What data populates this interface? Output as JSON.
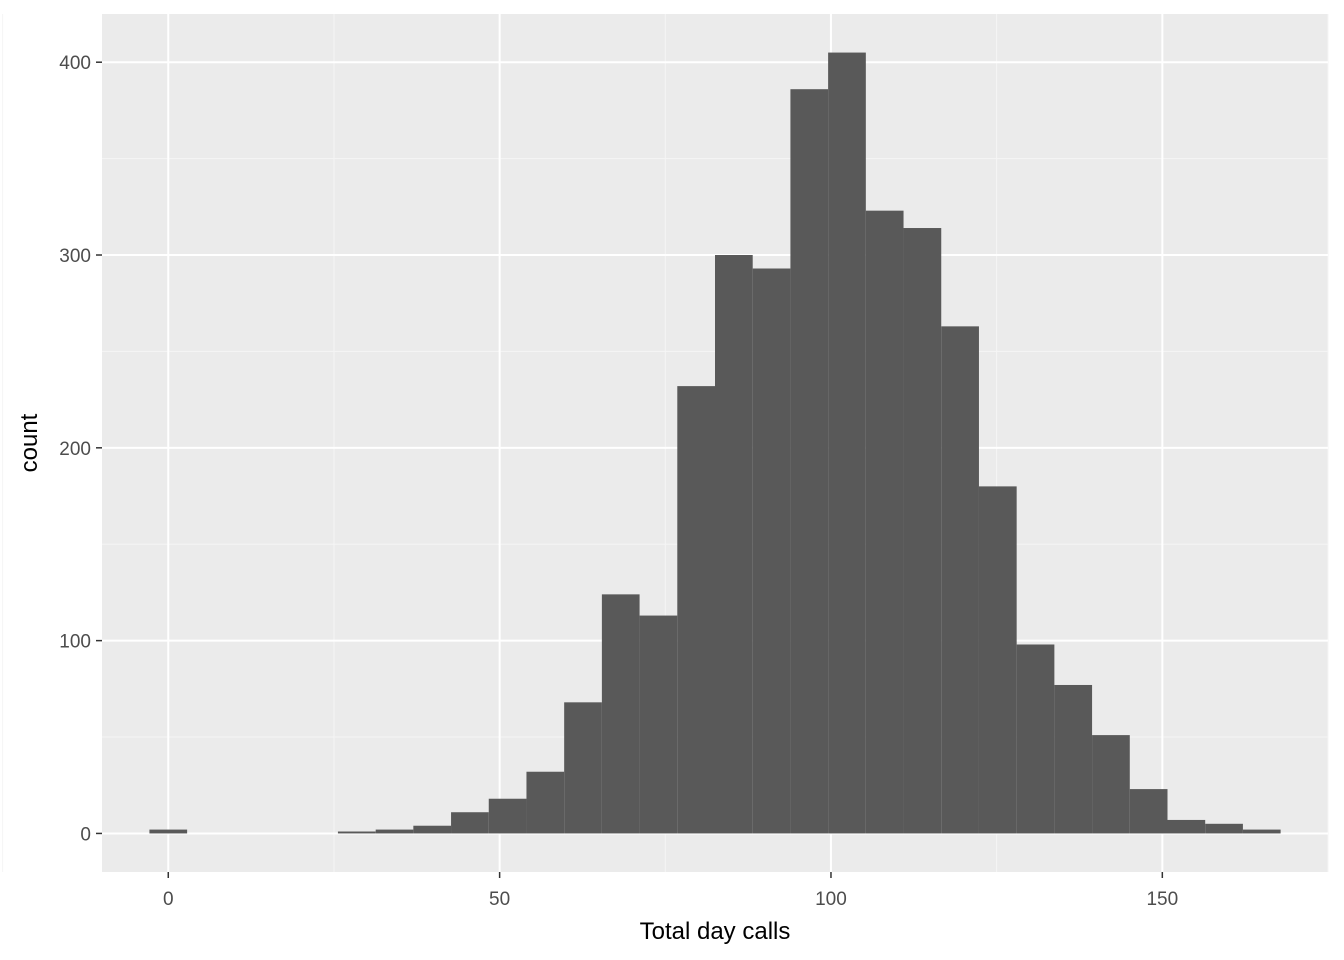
{
  "chart_data": {
    "type": "bar",
    "subtype": "histogram",
    "title": "",
    "xlabel": "Total day calls",
    "ylabel": "count",
    "xlim": [
      -10,
      175
    ],
    "ylim": [
      -20,
      425
    ],
    "x_ticks": [
      0,
      50,
      100,
      150
    ],
    "y_ticks": [
      0,
      100,
      200,
      300,
      400
    ],
    "grid": true,
    "bin_width": 5.69,
    "bins": [
      {
        "x_start": -2.845,
        "x_end": 2.845,
        "count": 2
      },
      {
        "x_start": 25.6,
        "x_end": 31.3,
        "count": 1
      },
      {
        "x_start": 31.3,
        "x_end": 36.98,
        "count": 2
      },
      {
        "x_start": 36.98,
        "x_end": 42.67,
        "count": 4
      },
      {
        "x_start": 42.67,
        "x_end": 48.36,
        "count": 11
      },
      {
        "x_start": 48.36,
        "x_end": 54.05,
        "count": 18
      },
      {
        "x_start": 54.05,
        "x_end": 59.74,
        "count": 32
      },
      {
        "x_start": 59.74,
        "x_end": 65.43,
        "count": 68
      },
      {
        "x_start": 65.43,
        "x_end": 71.12,
        "count": 124
      },
      {
        "x_start": 71.12,
        "x_end": 76.81,
        "count": 113
      },
      {
        "x_start": 76.81,
        "x_end": 82.5,
        "count": 232
      },
      {
        "x_start": 82.5,
        "x_end": 88.19,
        "count": 300
      },
      {
        "x_start": 88.19,
        "x_end": 93.88,
        "count": 293
      },
      {
        "x_start": 93.88,
        "x_end": 99.57,
        "count": 386
      },
      {
        "x_start": 99.57,
        "x_end": 105.26,
        "count": 405
      },
      {
        "x_start": 105.26,
        "x_end": 110.95,
        "count": 323
      },
      {
        "x_start": 110.95,
        "x_end": 116.64,
        "count": 314
      },
      {
        "x_start": 116.64,
        "x_end": 122.33,
        "count": 263
      },
      {
        "x_start": 122.33,
        "x_end": 128.02,
        "count": 180
      },
      {
        "x_start": 128.02,
        "x_end": 133.71,
        "count": 98
      },
      {
        "x_start": 133.71,
        "x_end": 139.4,
        "count": 77
      },
      {
        "x_start": 139.4,
        "x_end": 145.09,
        "count": 51
      },
      {
        "x_start": 145.09,
        "x_end": 150.78,
        "count": 23
      },
      {
        "x_start": 150.78,
        "x_end": 156.47,
        "count": 7
      },
      {
        "x_start": 156.47,
        "x_end": 162.16,
        "count": 5
      },
      {
        "x_start": 162.16,
        "x_end": 167.85,
        "count": 2
      }
    ],
    "colors": {
      "bar_fill": "#595959",
      "panel_background": "#ebebeb",
      "grid_major": "#ffffff",
      "grid_minor": "#f5f5f5",
      "tick_label": "#4d4d4d",
      "axis_title": "#000000"
    }
  }
}
